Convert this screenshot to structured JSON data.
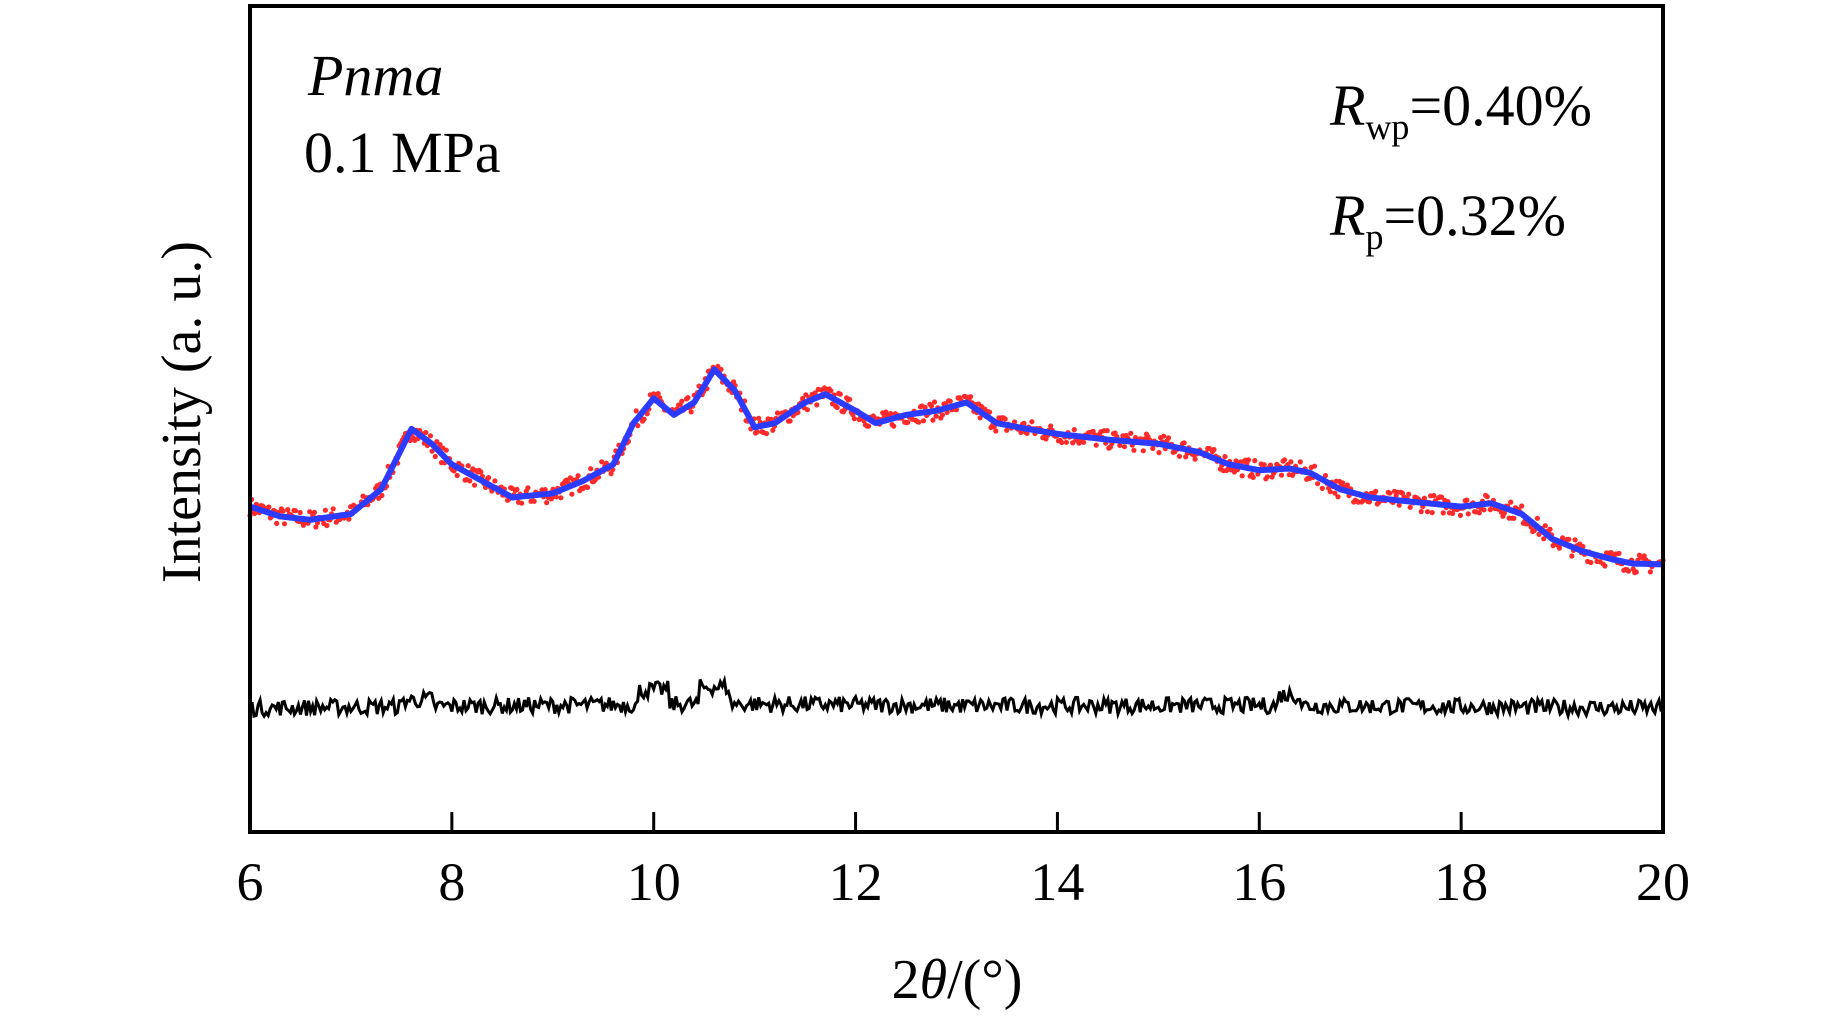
{
  "chart_data": {
    "type": "line",
    "title": "",
    "xlabel_prefix": "2",
    "xlabel_theta": "θ",
    "xlabel_unit": "/(°)",
    "ylabel": "Intensity (a. u.)",
    "xlim": [
      6,
      20
    ],
    "ylim": [
      0,
      100
    ],
    "xticks": [
      6,
      8,
      10,
      12,
      14,
      16,
      18,
      20
    ],
    "yticks_shown": false,
    "grid": false,
    "colors": {
      "observed": "#ff2a2a",
      "calculated": "#2b3bff",
      "difference": "#000000",
      "axes": "#000000"
    },
    "annotations": {
      "space_group": "Pnma",
      "pressure": "0.1 MPa",
      "rwp_symbol": "R",
      "rwp_sub": "wp",
      "rwp_value": "=0.40%",
      "rp_symbol": "R",
      "rp_sub": "p",
      "rp_value": "=0.32%"
    },
    "series": [
      {
        "role": "calculated",
        "x": [
          6.0,
          6.3,
          6.6,
          7.0,
          7.3,
          7.6,
          7.8,
          8.0,
          8.3,
          8.6,
          9.0,
          9.3,
          9.6,
          9.8,
          10.0,
          10.2,
          10.4,
          10.6,
          10.8,
          11.0,
          11.2,
          11.5,
          11.7,
          12.0,
          12.2,
          12.5,
          12.8,
          13.1,
          13.4,
          13.7,
          14.0,
          14.5,
          15.0,
          15.4,
          15.7,
          16.0,
          16.3,
          16.5,
          16.8,
          17.1,
          17.5,
          18.0,
          18.3,
          18.6,
          18.9,
          19.2,
          19.5,
          19.7,
          20.0
        ],
        "y": [
          39.4,
          38.2,
          37.8,
          38.5,
          41.5,
          48.8,
          47.0,
          44.5,
          42.5,
          40.5,
          41.0,
          42.5,
          44.5,
          49.5,
          52.5,
          50.5,
          52.0,
          56.0,
          53.5,
          49.0,
          49.5,
          52.0,
          53.0,
          51.0,
          49.5,
          50.5,
          51.0,
          52.0,
          49.5,
          48.8,
          48.2,
          47.5,
          47.0,
          46.0,
          44.5,
          43.8,
          44.0,
          43.5,
          41.5,
          40.5,
          40.0,
          39.4,
          39.8,
          38.5,
          35.5,
          34.0,
          33.0,
          32.5,
          32.4
        ]
      },
      {
        "role": "difference",
        "x": [
          6.0,
          7.65,
          10.0,
          10.6,
          13.1,
          16.3,
          20.0
        ],
        "y": [
          15.0,
          16.0,
          17.2,
          17.6,
          16.4,
          16.6,
          15.0
        ]
      }
    ]
  }
}
